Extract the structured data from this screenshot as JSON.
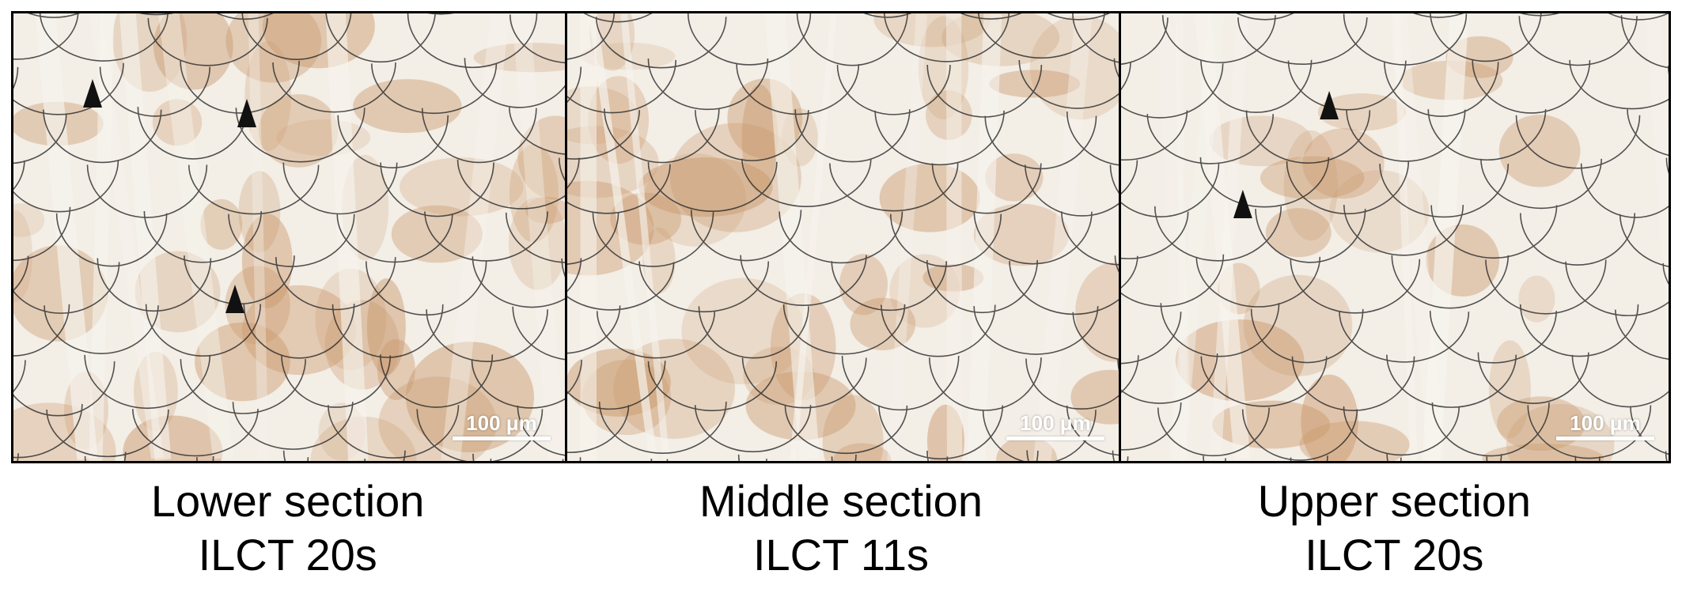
{
  "figure": {
    "panels": [
      {
        "id": "lower",
        "caption_line1": "Lower section",
        "caption_line2": "ILCT 20s",
        "scale_label": "100 μm",
        "pores": 3
      },
      {
        "id": "middle",
        "caption_line1": "Middle section",
        "caption_line2": "ILCT 11s",
        "scale_label": "100 μm",
        "pores": 0
      },
      {
        "id": "upper",
        "caption_line1": "Upper section",
        "caption_line2": "ILCT 20s",
        "scale_label": "100 μm",
        "pores": 2
      }
    ],
    "colors": {
      "background": "#f3eee6",
      "etched_region": "#c9976a",
      "melt_pool_boundary": "#2a2a2a",
      "pore": "#111111",
      "scale_bar": "#ffffff"
    }
  }
}
